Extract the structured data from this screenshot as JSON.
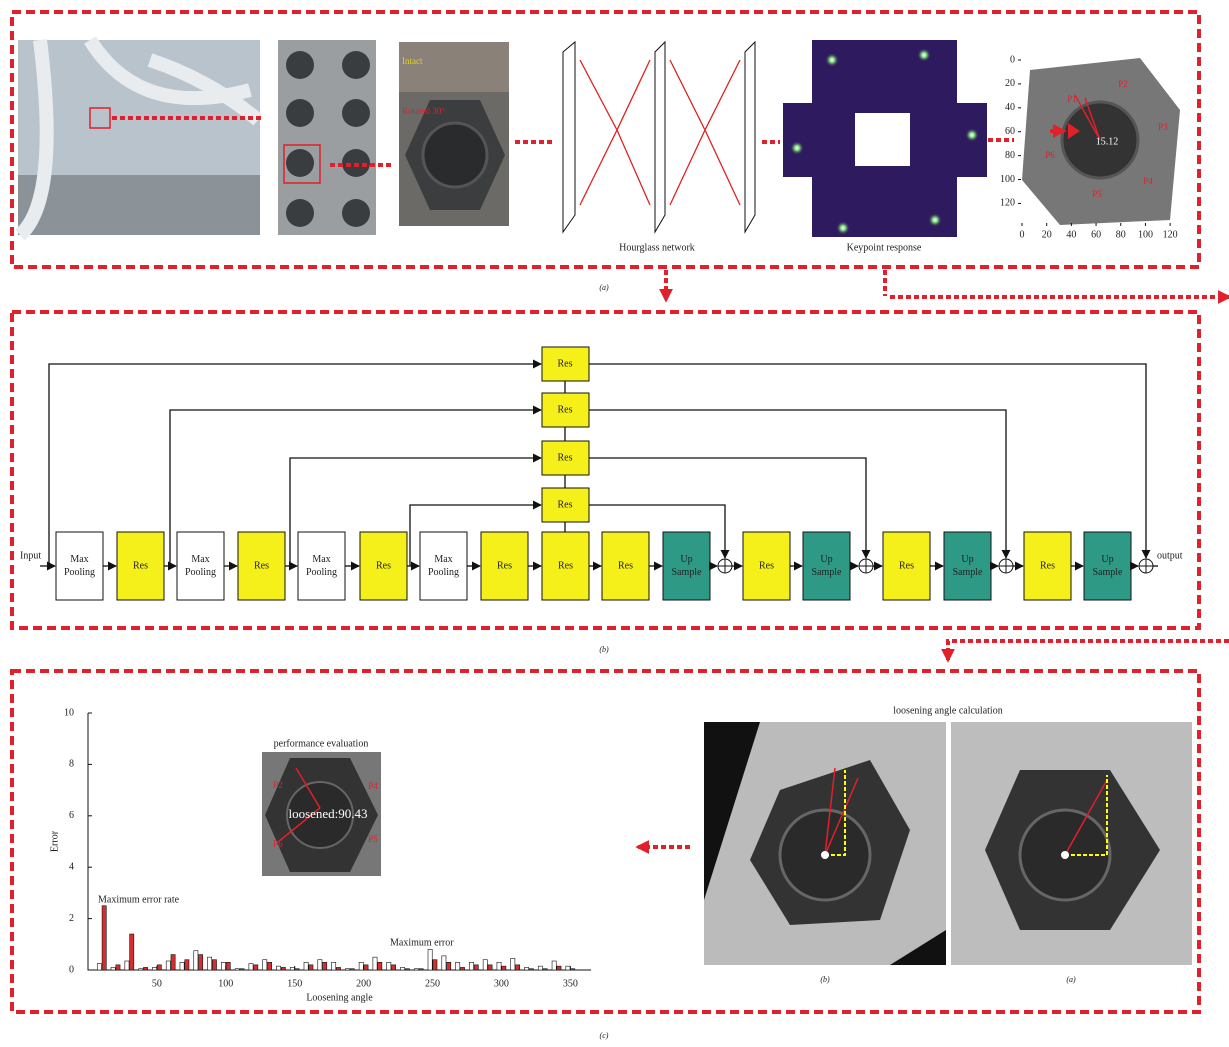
{
  "panel_a": {
    "photo_labels": [
      "Intact",
      "Rotated 30°"
    ],
    "network_label": "Hourglass network",
    "response_label": "Keypoint response",
    "plot": {
      "xlim": [
        0,
        128
      ],
      "ylim": [
        0,
        128
      ],
      "xticks": [
        0,
        20,
        40,
        60,
        80,
        100,
        120
      ],
      "yticks": [
        0,
        20,
        40,
        60,
        80,
        100,
        120
      ],
      "points": [
        "P1",
        "P2",
        "P3",
        "P4",
        "P5",
        "P6"
      ],
      "angle_label": "15.12"
    },
    "caption": "(a)"
  },
  "panel_b": {
    "input": "Input",
    "output": "output",
    "nodes": [
      [
        "Max",
        "Pooling"
      ],
      [
        "Res"
      ],
      [
        "Max",
        "Pooling"
      ],
      [
        "Res"
      ],
      [
        "Max",
        "Pooling"
      ],
      [
        "Res"
      ],
      [
        "Max",
        "Pooling"
      ],
      [
        "Res"
      ],
      [
        "Res"
      ],
      [
        "Res"
      ],
      [
        "Up",
        "Sample"
      ],
      [
        "Res"
      ],
      [
        "Up",
        "Sample"
      ],
      [
        "Res"
      ],
      [
        "Up",
        "Sample"
      ],
      [
        "Res"
      ],
      [
        "Up",
        "Sample"
      ]
    ],
    "skip_nodes": [
      "Res",
      "Res",
      "Res",
      "Res"
    ],
    "caption": "(b)"
  },
  "panel_c": {
    "inset_title": "performance evaluation",
    "inset_label": "loosened:90.43",
    "inset_points": [
      "P2",
      "P4",
      "P5",
      "P6"
    ],
    "calc_title": "loosening angle calculation",
    "photo_captions": [
      "(b)",
      "(a)"
    ],
    "caption": "(c)"
  },
  "chart_data": {
    "type": "bar",
    "xlabel": "Loosening angle",
    "ylabel": "Error",
    "annotations": [
      "Maximum error rate",
      "Maximum error"
    ],
    "x": [
      10,
      20,
      30,
      40,
      50,
      60,
      70,
      80,
      90,
      100,
      110,
      120,
      130,
      140,
      150,
      160,
      170,
      180,
      190,
      200,
      210,
      220,
      230,
      240,
      250,
      260,
      270,
      280,
      290,
      300,
      310,
      320,
      330,
      340,
      350
    ],
    "series": [
      {
        "color": "#ffffff",
        "values": [
          0.25,
          0.1,
          0.35,
          0.05,
          0.1,
          0.35,
          0.3,
          0.75,
          0.5,
          0.3,
          0.05,
          0.25,
          0.4,
          0.15,
          0.1,
          0.3,
          0.4,
          0.3,
          0.05,
          0.3,
          0.5,
          0.3,
          0.1,
          0.05,
          0.8,
          0.55,
          0.3,
          0.3,
          0.4,
          0.3,
          0.45,
          0.1,
          0.15,
          0.35,
          0.15
        ]
      },
      {
        "color": "#d32f2f",
        "values": [
          2.5,
          0.2,
          1.4,
          0.1,
          0.2,
          0.6,
          0.4,
          0.6,
          0.4,
          0.3,
          0.05,
          0.2,
          0.3,
          0.1,
          0.05,
          0.2,
          0.3,
          0.1,
          0.05,
          0.2,
          0.3,
          0.2,
          0.05,
          0.05,
          0.4,
          0.3,
          0.1,
          0.2,
          0.2,
          0.15,
          0.2,
          0.05,
          0.05,
          0.15,
          0.05
        ]
      }
    ],
    "xlim": [
      0,
      365
    ],
    "ylim": [
      0,
      10
    ],
    "xticks": [
      50,
      100,
      150,
      200,
      250,
      300,
      350
    ],
    "yticks": [
      0,
      2,
      4,
      6,
      8,
      10
    ]
  }
}
